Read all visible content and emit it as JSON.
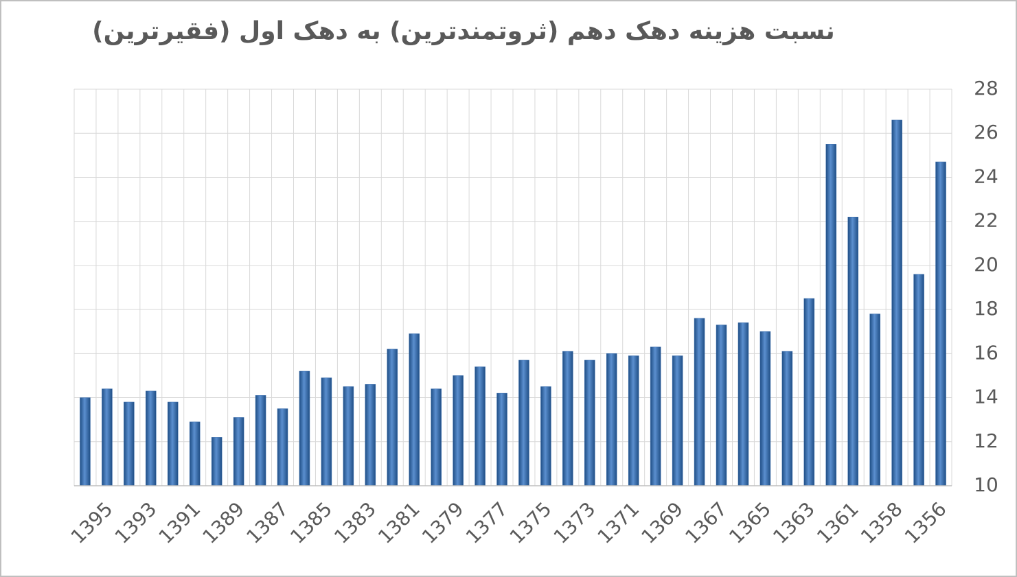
{
  "chart_data": {
    "type": "bar",
    "title": "نسبت هزینه دهک دهم (ثروتمندترین) به دهک اول (فقیرترین)",
    "categories": [
      null,
      "1395",
      null,
      "1393",
      null,
      "1391",
      null,
      "1389",
      null,
      "1387",
      null,
      "1385",
      null,
      "1383",
      null,
      "1381",
      null,
      "1379",
      null,
      "1377",
      null,
      "1375",
      null,
      "1373",
      null,
      "1371",
      null,
      "1369",
      null,
      "1367",
      null,
      "1365",
      null,
      "1363",
      null,
      "1361",
      null,
      "1358",
      null,
      "1356"
    ],
    "values": [
      14.0,
      14.4,
      13.8,
      14.3,
      13.8,
      12.9,
      12.2,
      13.1,
      14.1,
      13.5,
      15.2,
      14.9,
      14.5,
      14.6,
      16.2,
      16.9,
      14.4,
      15.0,
      15.4,
      14.2,
      15.7,
      14.5,
      16.1,
      15.7,
      16.0,
      15.9,
      16.3,
      15.9,
      17.6,
      17.3,
      17.4,
      17.0,
      16.1,
      18.5,
      25.5,
      22.2,
      17.8,
      26.6,
      19.6,
      24.7
    ],
    "color": "#3d6fae",
    "ylim": [
      10,
      28
    ],
    "yticks": [
      10,
      12,
      14,
      16,
      18,
      20,
      22,
      24,
      26,
      28
    ],
    "grid": true,
    "y_axis_side": "right"
  }
}
